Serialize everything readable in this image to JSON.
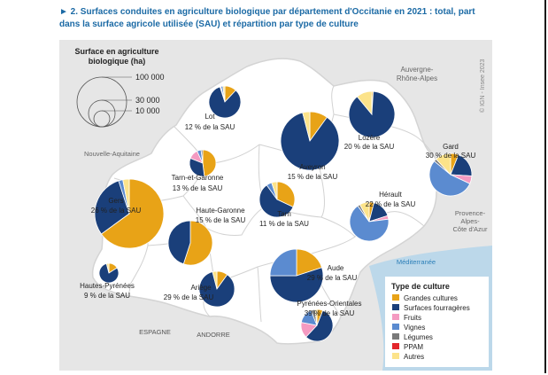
{
  "title": "► 2. Surfaces conduites en agriculture biologique par département d'Occitanie en 2021 : total, part dans la surface agricole utilisée (SAU) et répartition par type de culture",
  "size_legend": {
    "title_line1": "Surface en agriculture",
    "title_line2": "biologique (ha)",
    "values": [
      "100 000",
      "30 000",
      "10 000"
    ]
  },
  "credit": "© IGN - Insee 2023",
  "places": {
    "auvergne_1": "Auvergne-",
    "auvergne_2": "Rhône-Alpes",
    "nouvelle_aquitaine": "Nouvelle-Aquitaine",
    "paca_1": "Provence-",
    "paca_2": "Alpes-",
    "paca_3": "Côte d'Azur",
    "mediterranee": "Méditerranée",
    "espagne": "ESPAGNE",
    "andorre": "ANDORRE"
  },
  "type_legend": {
    "title": "Type de culture",
    "items": [
      {
        "label": "Grandes cultures",
        "color": "#e8a317"
      },
      {
        "label": "Surfaces fourragères",
        "color": "#1a3f7a"
      },
      {
        "label": "Fruits",
        "color": "#f49ac1"
      },
      {
        "label": "Vignes",
        "color": "#5b8bd0"
      },
      {
        "label": "Légumes",
        "color": "#7a7a7a"
      },
      {
        "label": "PPAM",
        "color": "#e3262b"
      },
      {
        "label": "Autres",
        "color": "#fce38a"
      }
    ]
  },
  "departments": [
    {
      "name": "Lot",
      "share": "12 % de la SAU",
      "shares": [
        0.12,
        0.83,
        0.01,
        0.02,
        0.0,
        0.0,
        0.02
      ]
    },
    {
      "name": "Lozère",
      "share": "20 % de la SAU",
      "shares": [
        0.01,
        0.88,
        0.0,
        0.0,
        0.0,
        0.0,
        0.11
      ]
    },
    {
      "name": "Aveyron",
      "share": "15 % de la SAU",
      "shares": [
        0.1,
        0.86,
        0.0,
        0.0,
        0.0,
        0.0,
        0.04
      ]
    },
    {
      "name": "Gard",
      "share": "30 % de la SAU",
      "shares": [
        0.06,
        0.2,
        0.06,
        0.54,
        0.02,
        0.0,
        0.12
      ]
    },
    {
      "name": "Tarn-et-Garonne",
      "share": "13 % de la SAU",
      "shares": [
        0.48,
        0.33,
        0.12,
        0.05,
        0.02,
        0.0,
        0.0
      ]
    },
    {
      "name": "Gers",
      "share": "26 % de la SAU",
      "shares": [
        0.65,
        0.3,
        0.0,
        0.02,
        0.0,
        0.0,
        0.03
      ]
    },
    {
      "name": "Haute-Garonne",
      "share": "15 % de la SAU",
      "shares": [
        0.55,
        0.45,
        0.0,
        0.0,
        0.0,
        0.0,
        0.0
      ]
    },
    {
      "name": "Tarn",
      "share": "11 % de la SAU",
      "shares": [
        0.32,
        0.58,
        0.0,
        0.05,
        0.0,
        0.0,
        0.05
      ]
    },
    {
      "name": "Hérault",
      "share": "22 % de la SAU",
      "shares": [
        0.04,
        0.16,
        0.03,
        0.67,
        0.02,
        0.0,
        0.08
      ]
    },
    {
      "name": "Hautes-Pyrénées",
      "share": "9 % de la SAU",
      "shares": [
        0.16,
        0.8,
        0.0,
        0.0,
        0.0,
        0.0,
        0.04
      ]
    },
    {
      "name": "Ariège",
      "share": "29 % de la SAU",
      "shares": [
        0.1,
        0.86,
        0.0,
        0.0,
        0.0,
        0.0,
        0.04
      ]
    },
    {
      "name": "Aude",
      "share": "29 % de la SAU",
      "shares": [
        0.2,
        0.55,
        0.0,
        0.25,
        0.0,
        0.0,
        0.0
      ]
    },
    {
      "name": "Pyrénées-Orientales",
      "share": "39 % de la SAU",
      "shares": [
        0.06,
        0.56,
        0.16,
        0.16,
        0.04,
        0.0,
        0.02
      ]
    }
  ]
}
